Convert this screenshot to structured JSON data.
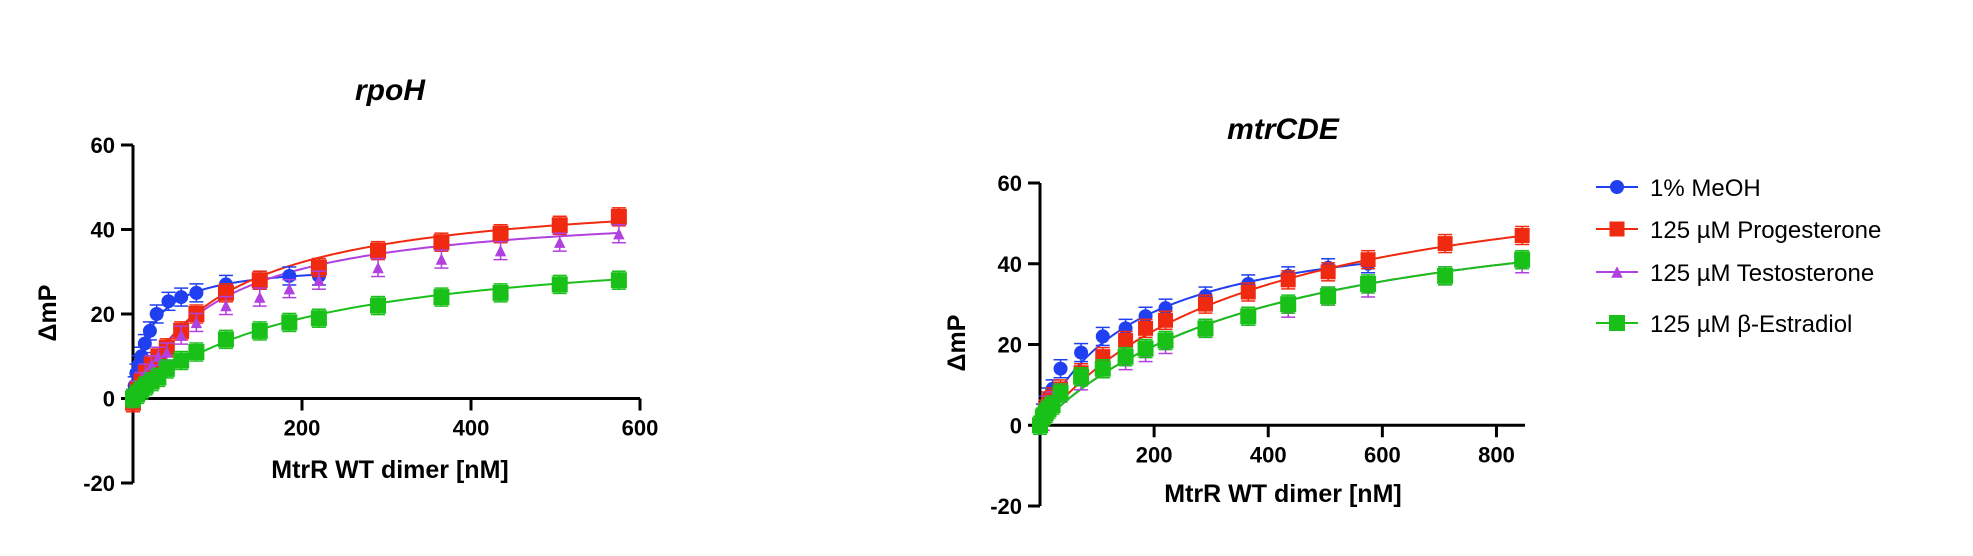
{
  "figure": {
    "legend": [
      {
        "label": "1% MeOH",
        "color": "#1f3ff0",
        "marker": "circle"
      },
      {
        "label": "125 µM Progesterone",
        "color": "#f02a10",
        "marker": "square"
      },
      {
        "label": "125 µM Testosterone",
        "color": "#b040e0",
        "marker": "triangle"
      },
      {
        "label": "125 µM β-Estradiol",
        "color": "#18c018",
        "marker": "square"
      }
    ]
  },
  "chart_data": [
    {
      "type": "scatter",
      "title": "rpoH",
      "xlabel": "MtrR WT dimer [nM]",
      "ylabel": "ΔmP",
      "xlim": [
        0,
        600
      ],
      "ylim": [
        -20,
        60
      ],
      "xticks": [
        "200",
        "400",
        "600"
      ],
      "yticks": [
        "-20",
        "0",
        "20",
        "40",
        "60"
      ],
      "xtick_values": [
        200,
        400,
        600
      ],
      "ytick_values": [
        -20,
        0,
        20,
        40,
        60
      ],
      "series": [
        {
          "name": "1% MeOH",
          "x": [
            0,
            2,
            4,
            7,
            10,
            14,
            20,
            28,
            42,
            57,
            75,
            110,
            150,
            185,
            220
          ],
          "y": [
            0,
            3,
            6,
            8,
            10,
            13,
            16,
            20,
            23,
            24,
            25,
            27,
            28,
            29,
            29
          ],
          "fit": {
            "bmax": 32,
            "kd": 20,
            "xmax": 222
          }
        },
        {
          "name": "125 µM Progesterone",
          "x": [
            0,
            5,
            10,
            15,
            22,
            30,
            40,
            57,
            75,
            110,
            150,
            220,
            290,
            365,
            435,
            505,
            575
          ],
          "y": [
            -1,
            2,
            4,
            6,
            8,
            10,
            12,
            16,
            20,
            25,
            28,
            31,
            35,
            37,
            39,
            41,
            43
          ],
          "fit": {
            "bmax": 50,
            "kd": 110,
            "xmax": 578
          }
        },
        {
          "name": "125 µM Testosterone",
          "x": [
            0,
            5,
            10,
            15,
            22,
            30,
            40,
            57,
            75,
            110,
            150,
            185,
            220,
            290,
            365,
            435,
            505,
            575
          ],
          "y": [
            0,
            2,
            4,
            6,
            8,
            10,
            11,
            15,
            18,
            22,
            24,
            26,
            28,
            31,
            33,
            35,
            37,
            39
          ],
          "fit": {
            "bmax": 46,
            "kd": 100,
            "xmax": 578
          }
        },
        {
          "name": "125 µM β-Estradiol",
          "x": [
            0,
            5,
            10,
            15,
            22,
            30,
            40,
            57,
            75,
            110,
            150,
            185,
            220,
            290,
            365,
            435,
            505,
            575
          ],
          "y": [
            0,
            1,
            2,
            3,
            4,
            5,
            7,
            9,
            11,
            14,
            16,
            18,
            19,
            22,
            24,
            25,
            27,
            28
          ],
          "fit": {
            "bmax": 38,
            "kd": 200,
            "xmax": 578
          }
        }
      ]
    },
    {
      "type": "scatter",
      "title": "mtrCDE",
      "xlabel": "MtrR WT dimer [nM]",
      "ylabel": "ΔmP",
      "xlim": [
        0,
        850
      ],
      "ylim": [
        -20,
        60
      ],
      "xticks": [
        "200",
        "400",
        "600",
        "800"
      ],
      "yticks": [
        "-20",
        "0",
        "20",
        "40",
        "60"
      ],
      "xtick_values": [
        200,
        400,
        600,
        800
      ],
      "ytick_values": [
        -20,
        0,
        20,
        40,
        60
      ],
      "series": [
        {
          "name": "1% MeOH",
          "x": [
            0,
            5,
            10,
            15,
            22,
            36,
            72,
            110,
            150,
            185,
            220,
            290,
            365,
            435,
            505,
            575
          ],
          "y": [
            0,
            3,
            5,
            7,
            9,
            14,
            18,
            22,
            24,
            27,
            29,
            32,
            35,
            37,
            39,
            40
          ],
          "fit": {
            "bmax": 52,
            "kd": 170,
            "xmax": 578
          }
        },
        {
          "name": "125 µM Progesterone",
          "x": [
            0,
            5,
            10,
            15,
            22,
            36,
            72,
            110,
            150,
            185,
            220,
            290,
            365,
            435,
            505,
            575,
            710,
            845
          ],
          "y": [
            0,
            2,
            4,
            6,
            7,
            9,
            13,
            17,
            21,
            24,
            26,
            30,
            33,
            36,
            38,
            41,
            45,
            47
          ],
          "fit": {
            "bmax": 68,
            "kd": 380,
            "xmax": 848
          }
        },
        {
          "name": "125 µM Testosterone",
          "x": [
            0,
            5,
            10,
            15,
            22,
            36,
            72,
            110,
            150,
            185,
            220,
            290,
            365,
            435,
            505,
            575,
            710,
            845
          ],
          "y": [
            0,
            1,
            3,
            5,
            6,
            8,
            11,
            14,
            16,
            18,
            20,
            24,
            27,
            29,
            32,
            34,
            37,
            40
          ],
          "fit": {
            "bmax": 60,
            "kd": 410,
            "xmax": 848
          }
        },
        {
          "name": "125 µM β-Estradiol",
          "x": [
            0,
            5,
            10,
            15,
            22,
            36,
            72,
            110,
            150,
            185,
            220,
            290,
            365,
            435,
            505,
            575,
            710,
            845
          ],
          "y": [
            0,
            2,
            3,
            4,
            5,
            8,
            12,
            14,
            17,
            19,
            21,
            24,
            27,
            30,
            32,
            35,
            37,
            41
          ],
          "fit": {
            "bmax": 60,
            "kd": 410,
            "xmax": 848
          }
        }
      ]
    }
  ]
}
